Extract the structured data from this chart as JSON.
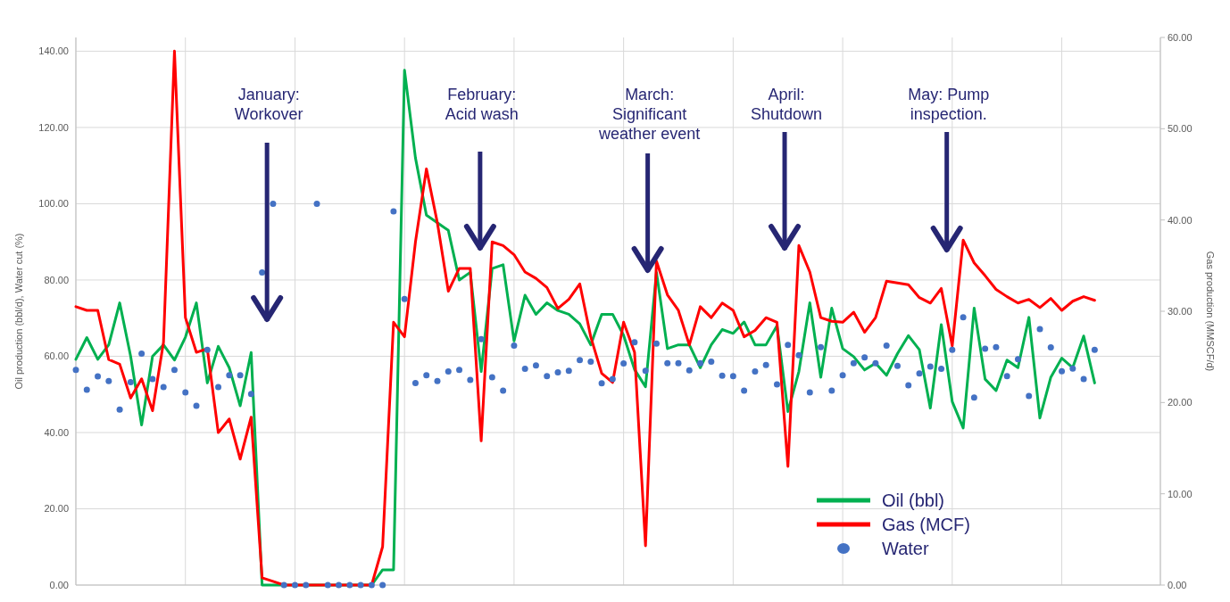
{
  "chart_data": {
    "type": "line",
    "ylabel": "Oil production (bbl/d), Water cut (%)",
    "y2label": "Gas production (MMSCF/d)",
    "categories": [
      null,
      null,
      null,
      null,
      null,
      null,
      null,
      null,
      null,
      null,
      null,
      null,
      null,
      null,
      null,
      null,
      null,
      null,
      null,
      null,
      null,
      null,
      null,
      null,
      null,
      null,
      null,
      null,
      null,
      null,
      null,
      null,
      null,
      null,
      null,
      null,
      null,
      null,
      null,
      null,
      null,
      null,
      null,
      null,
      null,
      null,
      null,
      null,
      null,
      null,
      null,
      null,
      null,
      null,
      null,
      null,
      null,
      null,
      null,
      null,
      null,
      null,
      null,
      null,
      null,
      null,
      null,
      null,
      null,
      null,
      null,
      null,
      null,
      null,
      null,
      null,
      null,
      null,
      null,
      null,
      null,
      null,
      null,
      null,
      null,
      null,
      null,
      null,
      null,
      null,
      null,
      null,
      null,
      null,
      null,
      null,
      null,
      null,
      null,
      null
    ],
    "ylim": [
      0,
      143.6
    ],
    "yticks": [
      {
        "value": 0,
        "label": "0.00"
      },
      {
        "value": 20,
        "label": "20.00"
      },
      {
        "value": 40,
        "label": "40.00"
      },
      {
        "value": 60,
        "label": "60.00"
      },
      {
        "value": 80,
        "label": "80.00"
      },
      {
        "value": 100,
        "label": "100.00"
      },
      {
        "value": 120,
        "label": "120.00"
      },
      {
        "value": 140,
        "label": "140.00"
      }
    ],
    "y2lim": [
      0,
      60
    ],
    "y2ticks": [
      {
        "value": 0,
        "label": "0.00"
      },
      {
        "value": 10,
        "label": "10.00"
      },
      {
        "value": 20,
        "label": "20.00"
      },
      {
        "value": 30,
        "label": "30.00"
      },
      {
        "value": 40,
        "label": "40.00"
      },
      {
        "value": 50,
        "label": "50.00"
      },
      {
        "value": 60,
        "label": "60.00"
      }
    ],
    "grid": true,
    "legend": "bottom right",
    "series": [
      {
        "name": "Oil (bbl)",
        "color": "#00b050",
        "marker": "none",
        "values": [
          59.2,
          64.9,
          59.2,
          63,
          74,
          60,
          42,
          60,
          63,
          59,
          65,
          74,
          53,
          62.6,
          57,
          47,
          61,
          0,
          0,
          0,
          0,
          0,
          0,
          0,
          0,
          0,
          0,
          0,
          4,
          4,
          135,
          112,
          97,
          95,
          93,
          80,
          82,
          56,
          83,
          84,
          64,
          76,
          71,
          74,
          72,
          71,
          68.5,
          63,
          71,
          71,
          65.5,
          56.5,
          52,
          82,
          62,
          63,
          63,
          57,
          63,
          67,
          66,
          69,
          63,
          63,
          68,
          45.5,
          56,
          74,
          54.5,
          72.6,
          62,
          59.9,
          56.4,
          58.2,
          55,
          60.7,
          65.4,
          61.7,
          46.4,
          68.3,
          48.1,
          41.2,
          72.6,
          54,
          51,
          59,
          57,
          70.2,
          43.8,
          54.5,
          59.5,
          57,
          65.3,
          53,
          null,
          null,
          null,
          null,
          null,
          null
        ]
      },
      {
        "name": "Gas (MCF)",
        "axis": "y2",
        "color": "#ff0000",
        "marker": "none",
        "values": [
          30.5,
          30.1,
          30.1,
          24.7,
          24.2,
          20.5,
          22.6,
          19.1,
          26.6,
          58.5,
          29.3,
          25.5,
          25.9,
          16.7,
          18.2,
          13.8,
          18.4,
          0.8,
          0.4,
          0,
          0,
          0,
          0,
          0,
          0,
          0,
          0,
          0,
          4.2,
          28.8,
          27.2,
          37.6,
          45.6,
          39.7,
          32.2,
          34.7,
          34.7,
          15.8,
          37.6,
          37.2,
          36.2,
          34.3,
          33.6,
          32.6,
          30.3,
          31.3,
          33,
          27.2,
          23.2,
          22.2,
          28.8,
          25.5,
          4.3,
          35.5,
          31.8,
          30.1,
          26.3,
          30.5,
          29.3,
          30.9,
          30.1,
          27.2,
          27.9,
          29.3,
          28.8,
          13,
          37.2,
          34.3,
          29.3,
          28.9,
          28.8,
          29.9,
          27.7,
          29.3,
          33.3,
          33.1,
          32.9,
          31.5,
          30.9,
          32.5,
          26.2,
          37.8,
          35.3,
          33.9,
          32.4,
          31.6,
          30.9,
          31.3,
          30.4,
          31.4,
          30.1,
          31.1,
          31.6,
          31.2,
          null,
          null,
          null,
          null,
          null,
          null
        ]
      },
      {
        "name": "Water",
        "type": "scatter",
        "color": "#4472c4",
        "marker": "circle",
        "values": [
          56.4,
          51.2,
          54.7,
          53.5,
          46,
          53.2,
          60.7,
          54,
          51.9,
          56.4,
          50.5,
          47,
          61.7,
          51.9,
          55,
          55,
          50.1,
          82,
          100,
          0,
          0,
          0,
          100,
          0,
          0,
          0,
          0,
          0,
          0,
          98,
          75,
          53,
          55,
          53.5,
          56,
          56.4,
          53.8,
          64.5,
          54.5,
          51,
          62.8,
          56.7,
          57.6,
          54.8,
          55.8,
          56.2,
          59,
          58.6,
          52.9,
          54,
          58.1,
          63.7,
          56.2,
          63.3,
          58.2,
          58.2,
          56.3,
          58.2,
          58.6,
          54.9,
          54.8,
          51,
          56,
          57.7,
          52.6,
          63,
          60.3,
          50.5,
          62.4,
          51,
          55,
          58.2,
          59.7,
          58.2,
          62.8,
          57.5,
          52.4,
          55.5,
          57.3,
          56.7,
          61.7,
          70.2,
          49.2,
          62,
          62.4,
          54.8,
          59.2,
          49.6,
          67.1,
          62.3,
          56.1,
          56.8,
          54,
          61.7,
          null,
          null,
          null,
          null,
          null,
          null
        ]
      }
    ],
    "annotations": [
      "January:\nWorkover",
      "February:\nAcid wash",
      "March:\nSignificant\nweather event",
      "April:\nShutdown",
      "May: Pump\ninspection."
    ]
  }
}
